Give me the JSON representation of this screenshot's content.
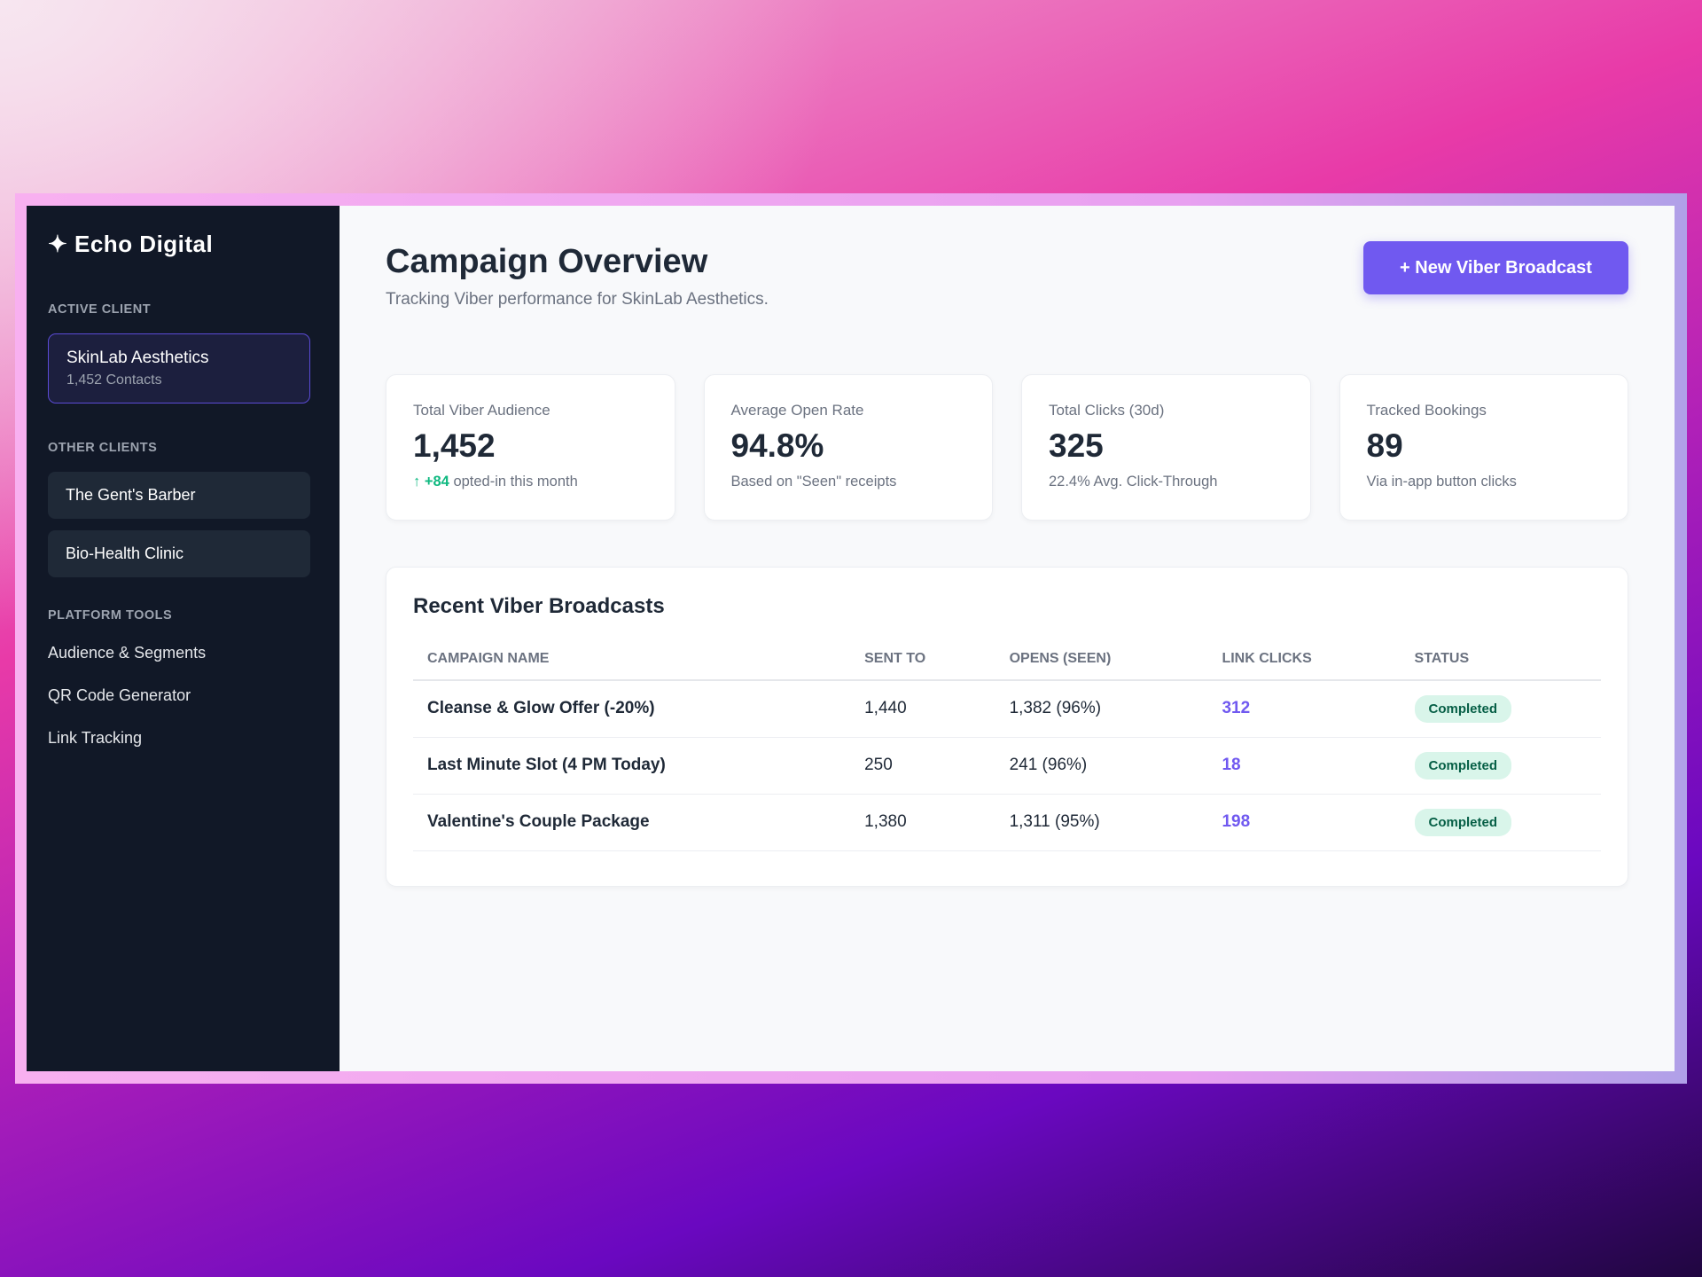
{
  "sidebar": {
    "logo": "✦ Echo Digital",
    "active_label": "ACTIVE CLIENT",
    "active_client": {
      "name": "SkinLab Aesthetics",
      "contacts": "1,452 Contacts"
    },
    "other_label": "OTHER CLIENTS",
    "other_clients": [
      "The Gent's Barber",
      "Bio-Health Clinic"
    ],
    "tools_label": "PLATFORM TOOLS",
    "tools": [
      "Audience & Segments",
      "QR Code Generator",
      "Link Tracking"
    ]
  },
  "header": {
    "title": "Campaign Overview",
    "subtitle": "Tracking Viber performance for SkinLab Aesthetics.",
    "button": "+ New Viber Broadcast"
  },
  "stats": [
    {
      "label": "Total Viber Audience",
      "value": "1,452",
      "arrow": "↑",
      "delta": "+84",
      "note": "opted-in this month"
    },
    {
      "label": "Average Open Rate",
      "value": "94.8%",
      "note": "Based on \"Seen\" receipts"
    },
    {
      "label": "Total Clicks (30d)",
      "value": "325",
      "note": "22.4% Avg. Click-Through"
    },
    {
      "label": "Tracked Bookings",
      "value": "89",
      "note": "Via in-app button clicks"
    }
  ],
  "table": {
    "title": "Recent Viber Broadcasts",
    "columns": [
      "CAMPAIGN NAME",
      "SENT TO",
      "OPENS (SEEN)",
      "LINK CLICKS",
      "STATUS"
    ],
    "rows": [
      {
        "name": "Cleanse & Glow Offer (-20%)",
        "sent": "1,440",
        "opens": "1,382 (96%)",
        "clicks": "312",
        "status": "Completed"
      },
      {
        "name": "Last Minute Slot (4 PM Today)",
        "sent": "250",
        "opens": "241 (96%)",
        "clicks": "18",
        "status": "Completed"
      },
      {
        "name": "Valentine's Couple Package",
        "sent": "1,380",
        "opens": "1,311 (95%)",
        "clicks": "198",
        "status": "Completed"
      }
    ]
  },
  "colors": {
    "accent": "#7059f0",
    "sidebar": "#111827",
    "success": "#10b981"
  }
}
